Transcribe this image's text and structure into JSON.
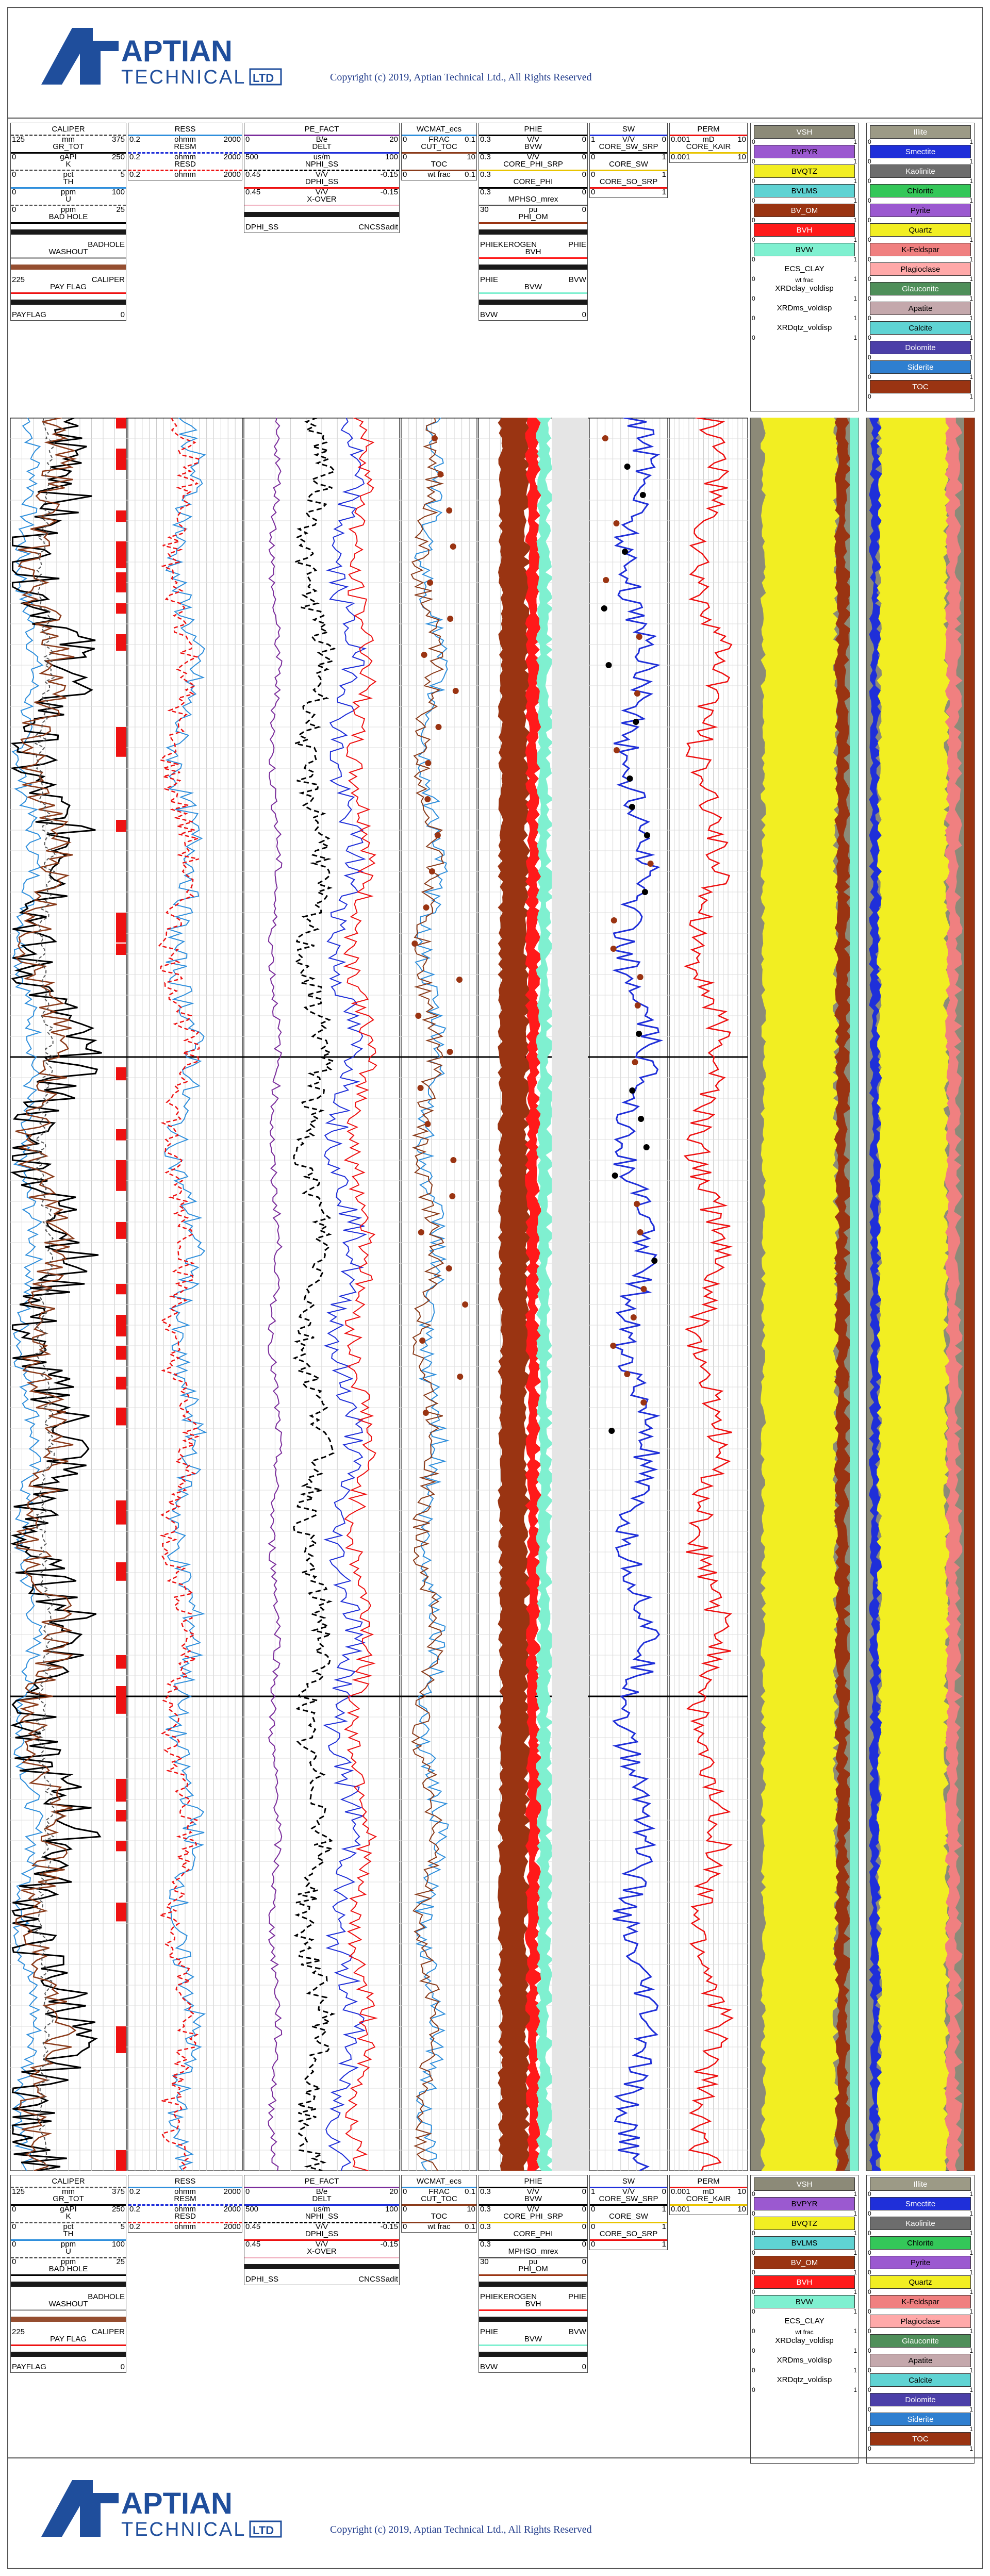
{
  "copyright": "Copyright (c) 2019, Aptian Technical Ltd., All Rights Reserved",
  "logo": {
    "word1": "APTIAN",
    "word2": "TECHNICAL",
    "suffix": "LTD"
  },
  "colors": {
    "brand": "#1f4e9c",
    "vsh": "#8c8a78",
    "bvpyr": "#9b59d0",
    "bvqtz": "#f2ee22",
    "bvlms": "#5fd3d3",
    "bvom": "#9a3412",
    "bvh": "#ff1a1a",
    "bvw": "#7ff0d0",
    "illite": "#9c9a86",
    "smectite": "#1f2fd9",
    "kaolinite": "#6d6d6d",
    "chlorite": "#34c759",
    "pyrite": "#9b59d0",
    "quartz": "#f2ee22",
    "kfeldspar": "#f08080",
    "plagioclase": "#ffa9a9",
    "glauconite": "#4f8f5a",
    "apatite": "#c4a8ac",
    "calcite": "#5fd3d3",
    "dolomite": "#4b3fa8",
    "siderite": "#2f7fd0",
    "toc": "#9a3412"
  },
  "track1": [
    {
      "name": "CALIPER",
      "lo": "125",
      "unit": "mm",
      "hi": "375"
    },
    {
      "name": "GR_TOT",
      "lo": "0",
      "unit": "gAPI",
      "hi": "250"
    },
    {
      "name": "K",
      "lo": "0",
      "unit": "pct",
      "hi": "5"
    },
    {
      "name": "TH",
      "lo": "0",
      "unit": "ppm",
      "hi": "100"
    },
    {
      "name": "U",
      "lo": "0",
      "unit": "ppm",
      "hi": "25"
    },
    {
      "name": "BAD HOLE",
      "lo": "",
      "unit": "",
      "hi": ""
    },
    {
      "name": "",
      "lo": "",
      "unit": "",
      "hi": "BADHOLE"
    },
    {
      "name": "WASHOUT",
      "lo": "",
      "unit": "",
      "hi": ""
    },
    {
      "name": "",
      "lo": "225",
      "unit": "",
      "hi": "CALIPER"
    },
    {
      "name": "PAY FLAG",
      "lo": "",
      "unit": "",
      "hi": ""
    },
    {
      "name": "",
      "lo": "PAYFLAG",
      "unit": "",
      "hi": "0"
    }
  ],
  "track2": [
    {
      "name": "RESS",
      "lo": "0.2",
      "unit": "ohmm",
      "hi": "2000"
    },
    {
      "name": "RESM",
      "lo": "0.2",
      "unit": "ohmm",
      "hi": "2000"
    },
    {
      "name": "RESD",
      "lo": "0.2",
      "unit": "ohmm",
      "hi": "2000"
    }
  ],
  "track3": [
    {
      "name": "PE_FACT",
      "lo": "0",
      "unit": "B/e",
      "hi": "20"
    },
    {
      "name": "DELT",
      "lo": "500",
      "unit": "us/m",
      "hi": "100"
    },
    {
      "name": "NPHI_SS",
      "lo": "0.45",
      "unit": "V/V",
      "hi": "-0.15"
    },
    {
      "name": "DPHI_SS",
      "lo": "0.45",
      "unit": "V/V",
      "hi": "-0.15"
    },
    {
      "name": "X-OVER",
      "lo": "",
      "unit": "",
      "hi": ""
    },
    {
      "name": "",
      "lo": "DPHI_SS",
      "unit": "",
      "hi": "CNCSSadit"
    }
  ],
  "track4": [
    {
      "name": "WCMAT_ecs",
      "lo": "0",
      "unit": "FRAC",
      "hi": "0.1"
    },
    {
      "name": "CUT_TOC",
      "lo": "0",
      "unit": "",
      "hi": "10"
    },
    {
      "name": "TOC",
      "lo": "0",
      "unit": "wt frac",
      "hi": "0.1"
    }
  ],
  "track5": [
    {
      "name": "PHIE",
      "lo": "0.3",
      "unit": "V/V",
      "hi": "0"
    },
    {
      "name": "BVW",
      "lo": "0.3",
      "unit": "V/V",
      "hi": "0"
    },
    {
      "name": "CORE_PHI_SRP",
      "lo": "0.3",
      "unit": "",
      "hi": "0"
    },
    {
      "name": "CORE_PHI",
      "lo": "0.3",
      "unit": "",
      "hi": "0"
    },
    {
      "name": "MPHSO_mrex",
      "lo": "30",
      "unit": "pu",
      "hi": "0"
    },
    {
      "name": "PHI_OM",
      "lo": "",
      "unit": "",
      "hi": ""
    },
    {
      "name": "",
      "lo": "PHIEKEROGEN",
      "unit": "",
      "hi": "PHIE"
    },
    {
      "name": "BVH",
      "lo": "",
      "unit": "",
      "hi": ""
    },
    {
      "name": "",
      "lo": "PHIE",
      "unit": "",
      "hi": "BVW"
    },
    {
      "name": "BVW",
      "lo": "",
      "unit": "",
      "hi": ""
    },
    {
      "name": "",
      "lo": "BVW",
      "unit": "",
      "hi": "0"
    }
  ],
  "track6": [
    {
      "name": "SW",
      "lo": "1",
      "unit": "V/V",
      "hi": "0"
    },
    {
      "name": "CORE_SW_SRP",
      "lo": "0",
      "unit": "",
      "hi": "1"
    },
    {
      "name": "CORE_SW",
      "lo": "0",
      "unit": "",
      "hi": "1"
    },
    {
      "name": "CORE_SO_SRP",
      "lo": "0",
      "unit": "",
      "hi": "1"
    }
  ],
  "track7": [
    {
      "name": "PERM",
      "lo": "0.001",
      "unit": "mD",
      "hi": "10"
    },
    {
      "name": "CORE_KAIR",
      "lo": "0.001",
      "unit": "",
      "hi": "10"
    }
  ],
  "track8": [
    {
      "name": "VSH",
      "lo": "0",
      "unit": "",
      "hi": "1"
    },
    {
      "name": "BVPYR",
      "lo": "0",
      "unit": "",
      "hi": "1"
    },
    {
      "name": "BVQTZ",
      "lo": "0",
      "unit": "",
      "hi": "1"
    },
    {
      "name": "BVLMS",
      "lo": "0",
      "unit": "",
      "hi": "1"
    },
    {
      "name": "BV_OM",
      "lo": "0",
      "unit": "",
      "hi": "1"
    },
    {
      "name": "BVH",
      "lo": "0",
      "unit": "",
      "hi": "1"
    },
    {
      "name": "BVW",
      "lo": "0",
      "unit": "",
      "hi": "1"
    },
    {
      "name": "ECS_CLAY",
      "lo": "0",
      "unit": "wt frac",
      "hi": "1"
    },
    {
      "name": "XRDclay_voldisp",
      "lo": "0",
      "unit": "",
      "hi": "1"
    },
    {
      "name": "XRDms_voldisp",
      "lo": "0",
      "unit": "",
      "hi": "1"
    },
    {
      "name": "XRDqtz_voldisp",
      "lo": "0",
      "unit": "",
      "hi": "1"
    }
  ],
  "track9": [
    {
      "name": "Illite",
      "lo": "0",
      "hi": "1"
    },
    {
      "name": "Smectite",
      "lo": "0",
      "hi": "1"
    },
    {
      "name": "Kaolinite",
      "lo": "0",
      "hi": "1"
    },
    {
      "name": "Chlorite",
      "lo": "0",
      "hi": "1"
    },
    {
      "name": "Pyrite",
      "lo": "0",
      "hi": "1"
    },
    {
      "name": "Quartz",
      "lo": "0",
      "hi": "1"
    },
    {
      "name": "K-Feldspar",
      "lo": "0",
      "hi": "1"
    },
    {
      "name": "Plagioclase",
      "lo": "0",
      "hi": "1"
    },
    {
      "name": "Glauconite",
      "lo": "0",
      "hi": "1"
    },
    {
      "name": "Apatite",
      "lo": "0",
      "hi": "1"
    },
    {
      "name": "Calcite",
      "lo": "0",
      "hi": "1"
    },
    {
      "name": "Dolomite",
      "lo": "0",
      "hi": "1"
    },
    {
      "name": "Siderite",
      "lo": "0",
      "hi": "1"
    },
    {
      "name": "TOC",
      "lo": "0",
      "hi": "1"
    }
  ]
}
